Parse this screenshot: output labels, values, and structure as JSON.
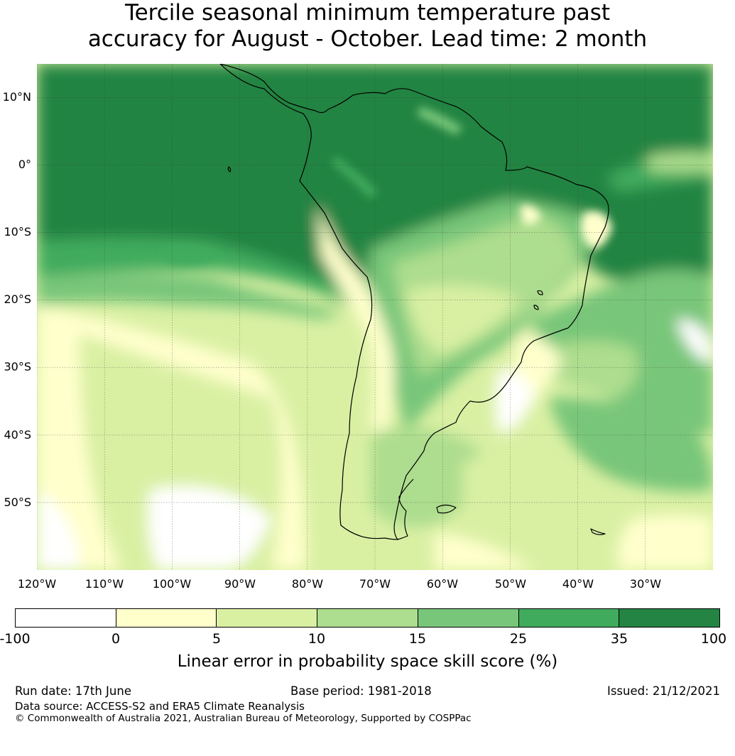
{
  "title": {
    "line1": "Tercile seasonal minimum temperature past",
    "line2": "accuracy for August - October. Lead time: 2 month"
  },
  "map": {
    "lat_labels": [
      "10°N",
      "0°",
      "10°S",
      "20°S",
      "30°S",
      "40°S",
      "50°S"
    ],
    "lon_labels": [
      "120°W",
      "110°W",
      "100°W",
      "90°W",
      "80°W",
      "70°W",
      "60°W",
      "50°W",
      "40°W",
      "30°W"
    ],
    "extent": {
      "lon": [
        -120,
        -20
      ],
      "lat": [
        -60,
        15
      ]
    },
    "gridlines": true,
    "colors": {
      "c_m100_0": "#ffffff",
      "c_0_5": "#ffffcc",
      "c_5_10": "#d9f0a3",
      "c_10_15": "#addd8e",
      "c_15_25": "#78c679",
      "c_25_35": "#41ab5d",
      "c_35_100": "#238443"
    }
  },
  "colorbar": {
    "ticks": [
      "-100",
      "0",
      "5",
      "10",
      "15",
      "25",
      "35",
      "100"
    ],
    "colors": [
      "#ffffff",
      "#ffffcc",
      "#d9f0a3",
      "#addd8e",
      "#78c679",
      "#41ab5d",
      "#238443"
    ],
    "label": "Linear error in probability space skill score (%)"
  },
  "footer": {
    "run_date": "Run date: 17th June",
    "base_period": "Base period: 1981-2018",
    "issued": "Issued: 21/12/2021",
    "data_source": "Data source: ACCESS-S2 and ERA5 Climate Reanalysis",
    "copyright": "© Commonwealth of Australia 2021, Australian Bureau of Meteorology, Supported by COSPPac"
  }
}
